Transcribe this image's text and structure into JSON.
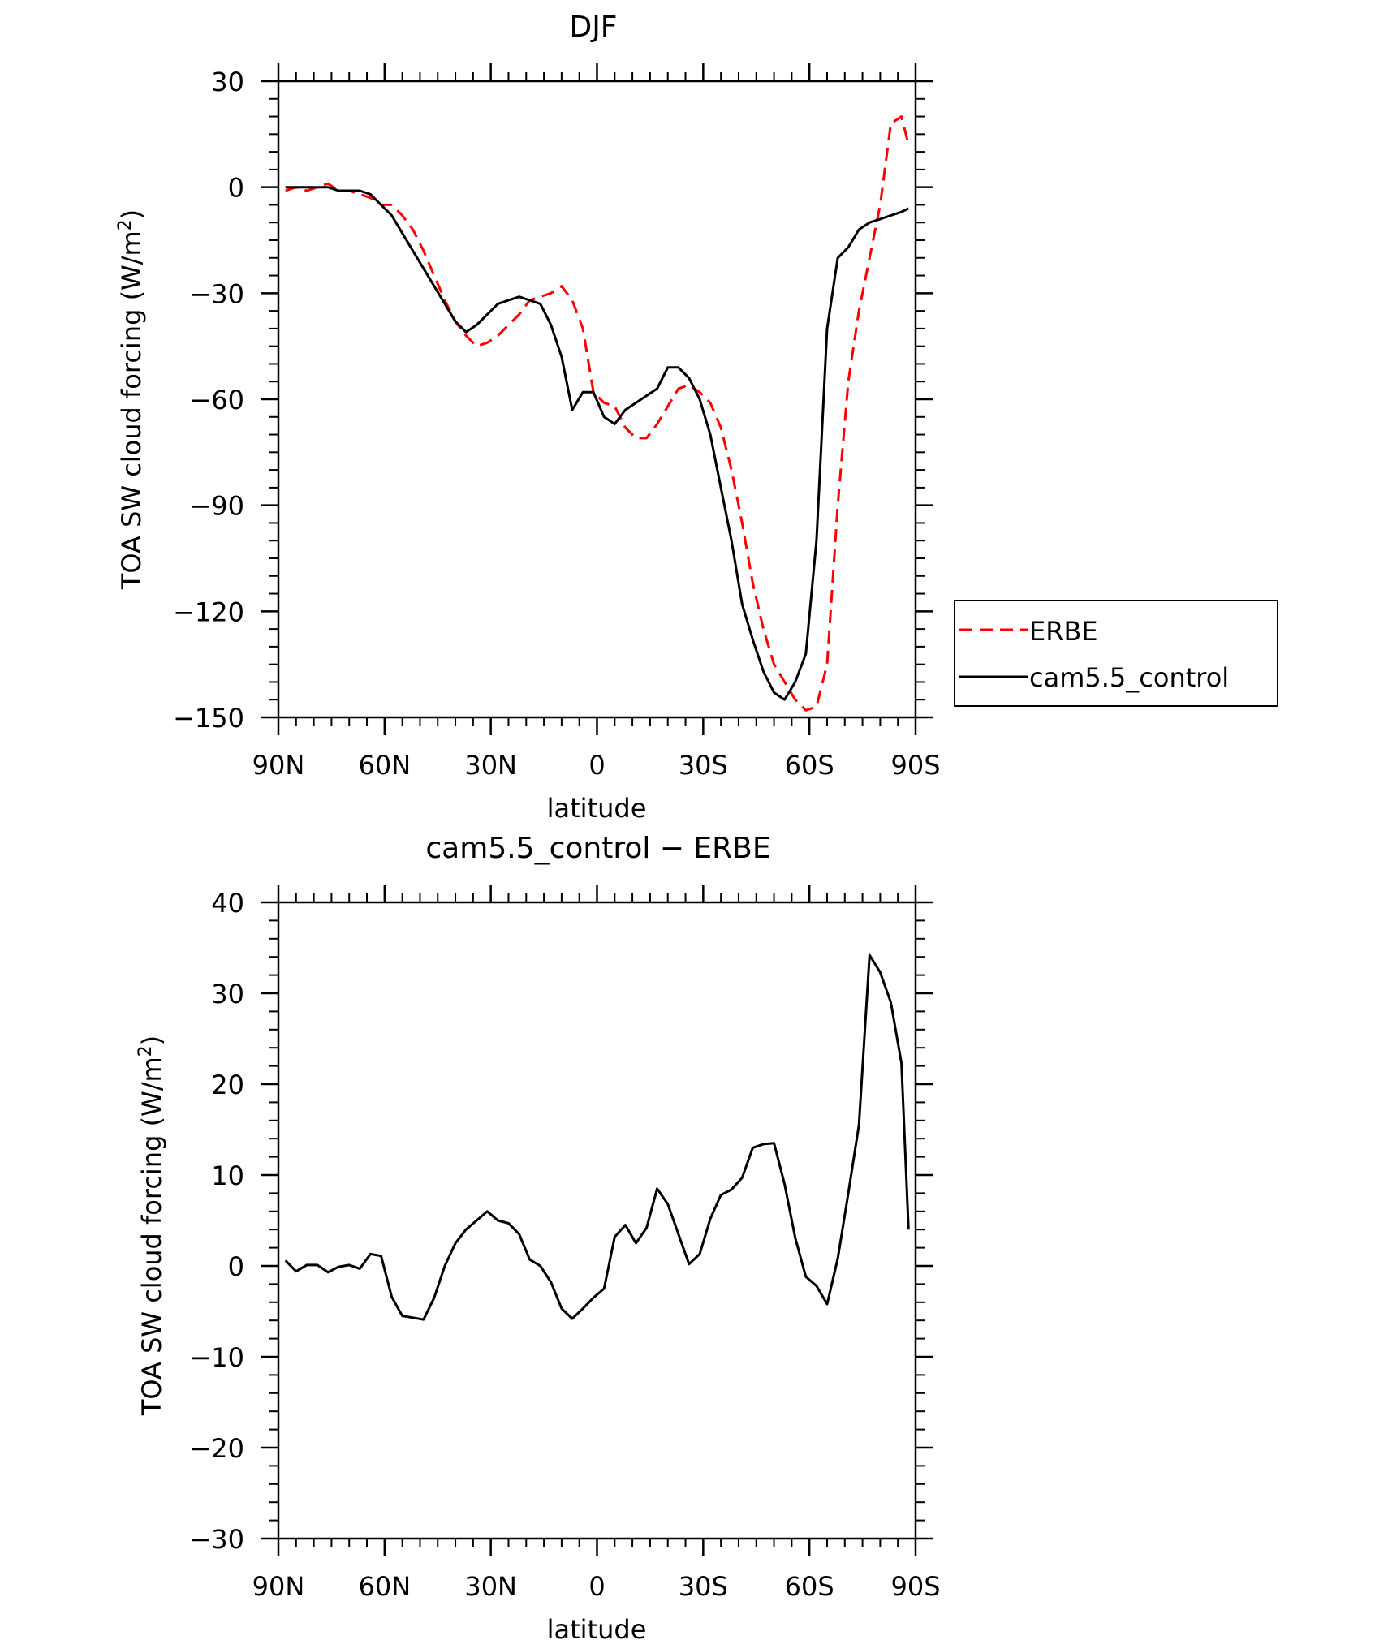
{
  "chart_data": [
    {
      "type": "line",
      "title": "DJF",
      "xlabel": "latitude",
      "ylabel": "TOA SW cloud forcing (W/m²)",
      "ylabel_parts": [
        "TOA SW cloud forcing (W/m",
        "2",
        ")"
      ],
      "xlim": [
        -90,
        90
      ],
      "ylim": [
        -150,
        30
      ],
      "x_ticks": [
        {
          "value": -90,
          "label": "90N"
        },
        {
          "value": -60,
          "label": "60N"
        },
        {
          "value": -30,
          "label": "30N"
        },
        {
          "value": 0,
          "label": "0"
        },
        {
          "value": 30,
          "label": "30S"
        },
        {
          "value": 60,
          "label": "60S"
        },
        {
          "value": 90,
          "label": "90S"
        }
      ],
      "y_ticks": [
        {
          "value": 30,
          "label": "30"
        },
        {
          "value": 0,
          "label": "0"
        },
        {
          "value": -30,
          "label": "−30"
        },
        {
          "value": -60,
          "label": "−60"
        },
        {
          "value": -90,
          "label": "−90"
        },
        {
          "value": -120,
          "label": "−120"
        },
        {
          "value": -150,
          "label": "−150"
        }
      ],
      "legend": {
        "placement": "outside-right",
        "entries": [
          "ERBE",
          "cam5.5_control"
        ]
      },
      "series": [
        {
          "name": "ERBE",
          "color": "#ff0000",
          "dash": "dashed",
          "x": [
            -88,
            -85,
            -82,
            -79,
            -76,
            -73,
            -70,
            -67,
            -64,
            -61,
            -58,
            -55,
            -52,
            -49,
            -46,
            -43,
            -40,
            -37,
            -34,
            -31,
            -28,
            -25,
            -22,
            -19,
            -16,
            -13,
            -10,
            -7,
            -4,
            -1,
            2,
            5,
            8,
            11,
            14,
            17,
            20,
            23,
            26,
            29,
            32,
            35,
            38,
            41,
            44,
            47,
            50,
            53,
            56,
            59,
            62,
            65,
            68,
            71,
            74,
            77,
            80,
            83,
            86,
            88
          ],
          "y": [
            -1,
            0,
            -1,
            0,
            1,
            -1,
            -1,
            -2,
            -3,
            -5,
            -5,
            -8,
            -12,
            -18,
            -25,
            -32,
            -38,
            -42,
            -45,
            -44,
            -42,
            -39,
            -36,
            -32,
            -31,
            -30,
            -28,
            -32,
            -40,
            -58,
            -61,
            -62,
            -68,
            -71,
            -71,
            -67,
            -62,
            -57,
            -56,
            -58,
            -61,
            -68,
            -80,
            -95,
            -112,
            -125,
            -135,
            -140,
            -145,
            -148,
            -147,
            -135,
            -90,
            -55,
            -35,
            -20,
            -5,
            18,
            20,
            12
          ]
        },
        {
          "name": "cam5.5_control",
          "color": "#000000",
          "dash": "solid",
          "x": [
            -88,
            -85,
            -82,
            -79,
            -76,
            -73,
            -70,
            -67,
            -64,
            -61,
            -58,
            -55,
            -52,
            -49,
            -46,
            -43,
            -40,
            -37,
            -34,
            -31,
            -28,
            -25,
            -22,
            -19,
            -16,
            -13,
            -10,
            -7,
            -4,
            -1,
            2,
            5,
            8,
            11,
            14,
            17,
            20,
            23,
            26,
            29,
            32,
            35,
            38,
            41,
            44,
            47,
            50,
            53,
            56,
            59,
            62,
            65,
            68,
            71,
            74,
            77,
            80,
            83,
            86,
            88
          ],
          "y": [
            0,
            0,
            0,
            0,
            0,
            -1,
            -1,
            -1,
            -2,
            -5,
            -8,
            -13,
            -18,
            -23,
            -28,
            -33,
            -38,
            -41,
            -39,
            -36,
            -33,
            -32,
            -31,
            -32,
            -33,
            -39,
            -48,
            -63,
            -58,
            -58,
            -65,
            -67,
            -63,
            -61,
            -59,
            -57,
            -51,
            -51,
            -54,
            -60,
            -70,
            -85,
            -100,
            -118,
            -128,
            -137,
            -143,
            -145,
            -140,
            -132,
            -100,
            -40,
            -20,
            -17,
            -12,
            -10,
            -9,
            -8,
            -7,
            -6
          ]
        }
      ]
    },
    {
      "type": "line",
      "title": "cam5.5_control − ERBE",
      "xlabel": "latitude",
      "ylabel": "TOA SW cloud forcing (W/m²)",
      "ylabel_parts": [
        "TOA SW cloud forcing (W/m",
        "2",
        ")"
      ],
      "xlim": [
        -90,
        90
      ],
      "ylim": [
        -30,
        40
      ],
      "x_ticks": [
        {
          "value": -90,
          "label": "90N"
        },
        {
          "value": -60,
          "label": "60N"
        },
        {
          "value": -30,
          "label": "30N"
        },
        {
          "value": 0,
          "label": "0"
        },
        {
          "value": 30,
          "label": "30S"
        },
        {
          "value": 60,
          "label": "60S"
        },
        {
          "value": 90,
          "label": "90S"
        }
      ],
      "y_ticks": [
        {
          "value": 40,
          "label": "40"
        },
        {
          "value": 30,
          "label": "30"
        },
        {
          "value": 20,
          "label": "20"
        },
        {
          "value": 10,
          "label": "10"
        },
        {
          "value": 0,
          "label": "0"
        },
        {
          "value": -10,
          "label": "−10"
        },
        {
          "value": -20,
          "label": "−20"
        },
        {
          "value": -30,
          "label": "−30"
        }
      ],
      "series": [
        {
          "color": "#000000",
          "dash": "solid",
          "x": [
            -88,
            -85,
            -82,
            -79,
            -76,
            -73,
            -70,
            -67,
            -64,
            -61,
            -58,
            -55,
            -52,
            -49,
            -46,
            -43,
            -40,
            -37,
            -34,
            -31,
            -28,
            -25,
            -22,
            -19,
            -16,
            -13,
            -10,
            -7,
            -4,
            -1,
            2,
            5,
            8,
            11,
            14,
            17,
            20,
            23,
            26,
            29,
            32,
            35,
            38,
            41,
            44,
            47,
            50,
            53,
            56,
            59,
            62,
            65,
            68,
            71,
            74,
            77,
            80,
            83,
            86,
            88
          ],
          "y": [
            0.6,
            -0.6,
            0.1,
            0.1,
            -0.7,
            -0.1,
            0.1,
            -0.3,
            1.3,
            1.1,
            -3.4,
            -5.5,
            -5.7,
            -5.9,
            -3.5,
            0.0,
            2.5,
            4.0,
            5.0,
            6.0,
            5.0,
            4.7,
            3.5,
            0.7,
            0.0,
            -1.8,
            -4.7,
            -5.8,
            -4.7,
            -3.5,
            -2.5,
            3.2,
            4.5,
            2.5,
            4.2,
            8.5,
            6.8,
            3.5,
            0.2,
            1.3,
            5.2,
            7.8,
            8.4,
            9.7,
            13.0,
            13.4,
            13.5,
            9.0,
            3.1,
            -1.2,
            -2.2,
            -4.2,
            0.8,
            8.0,
            15.5,
            34.2,
            32.3,
            29.0,
            22.3,
            4.0
          ]
        }
      ]
    }
  ]
}
